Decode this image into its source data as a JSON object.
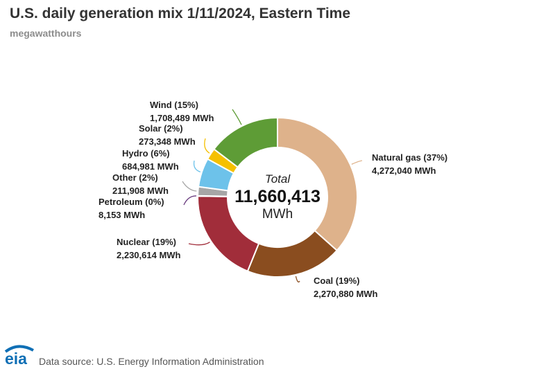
{
  "title": "U.S. daily generation mix 1/11/2024, Eastern Time",
  "subtitle": "megawatthours",
  "source": "Data source: U.S. Energy Information Administration",
  "logo_text": "eia",
  "chart_data": {
    "type": "pie",
    "variant": "donut",
    "title": "U.S. daily generation mix 1/11/2024, Eastern Time",
    "units": "megawatthours",
    "center": {
      "line1": "Total",
      "value": "11,660,413",
      "unit": "MWh"
    },
    "slices": [
      {
        "name": "Natural gas",
        "pct": "37%",
        "value": 4272040,
        "value_label": "4,272,040 MWh",
        "color": "#deb28b"
      },
      {
        "name": "Coal",
        "pct": "19%",
        "value": 2270880,
        "value_label": "2,270,880 MWh",
        "color": "#8a4d1f"
      },
      {
        "name": "Nuclear",
        "pct": "19%",
        "value": 2230614,
        "value_label": "2,230,614 MWh",
        "color": "#a12d3a"
      },
      {
        "name": "Petroleum",
        "pct": "0%",
        "value": 8153,
        "value_label": "8,153 MWh",
        "color": "#6a3d7f"
      },
      {
        "name": "Other",
        "pct": "2%",
        "value": 211908,
        "value_label": "211,908 MWh",
        "color": "#a6a6a6"
      },
      {
        "name": "Hydro",
        "pct": "6%",
        "value": 684981,
        "value_label": "684,981 MWh",
        "color": "#6dc2ea"
      },
      {
        "name": "Solar",
        "pct": "2%",
        "value": 273348,
        "value_label": "273,348 MWh",
        "color": "#f5c000"
      },
      {
        "name": "Wind",
        "pct": "15%",
        "value": 1708489,
        "value_label": "1,708,489 MWh",
        "color": "#5e9c36"
      }
    ]
  }
}
